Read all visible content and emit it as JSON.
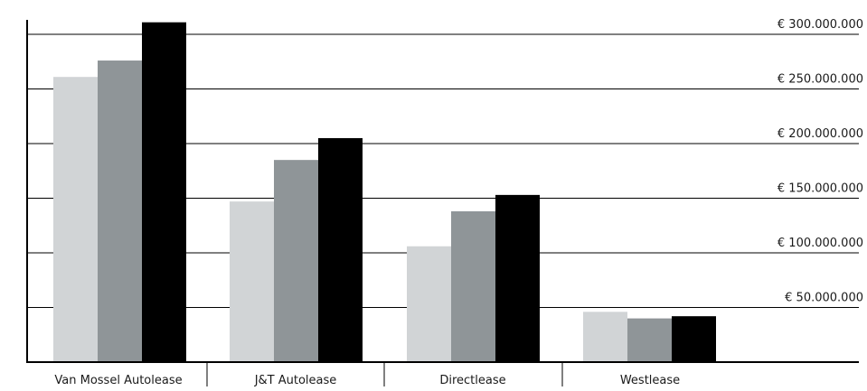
{
  "chart_data": {
    "type": "bar",
    "title": "",
    "xlabel": "",
    "ylabel": "",
    "categories": [
      "Van Mossel Autolease",
      "J&T Autolease",
      "Directlease",
      "Westlease"
    ],
    "series": [
      {
        "values": [
          261000000,
          147000000,
          106000000,
          46000000
        ]
      },
      {
        "values": [
          276000000,
          185000000,
          138000000,
          40000000
        ]
      },
      {
        "values": [
          311000000,
          205000000,
          153000000,
          42000000
        ]
      }
    ],
    "ylim": [
      0,
      315000000
    ],
    "yticks": [
      50000000,
      100000000,
      150000000,
      200000000,
      250000000,
      300000000
    ],
    "ytick_labels": [
      "€ 50.000.000",
      "€ 100.000.000",
      "€ 150.000.000",
      "€ 200.000.000",
      "€ 250.000.000",
      "€ 300.000.000"
    ],
    "colors": [
      "#d1d4d6",
      "#8f9598",
      "#000000"
    ],
    "grid": true,
    "legend": "none"
  }
}
